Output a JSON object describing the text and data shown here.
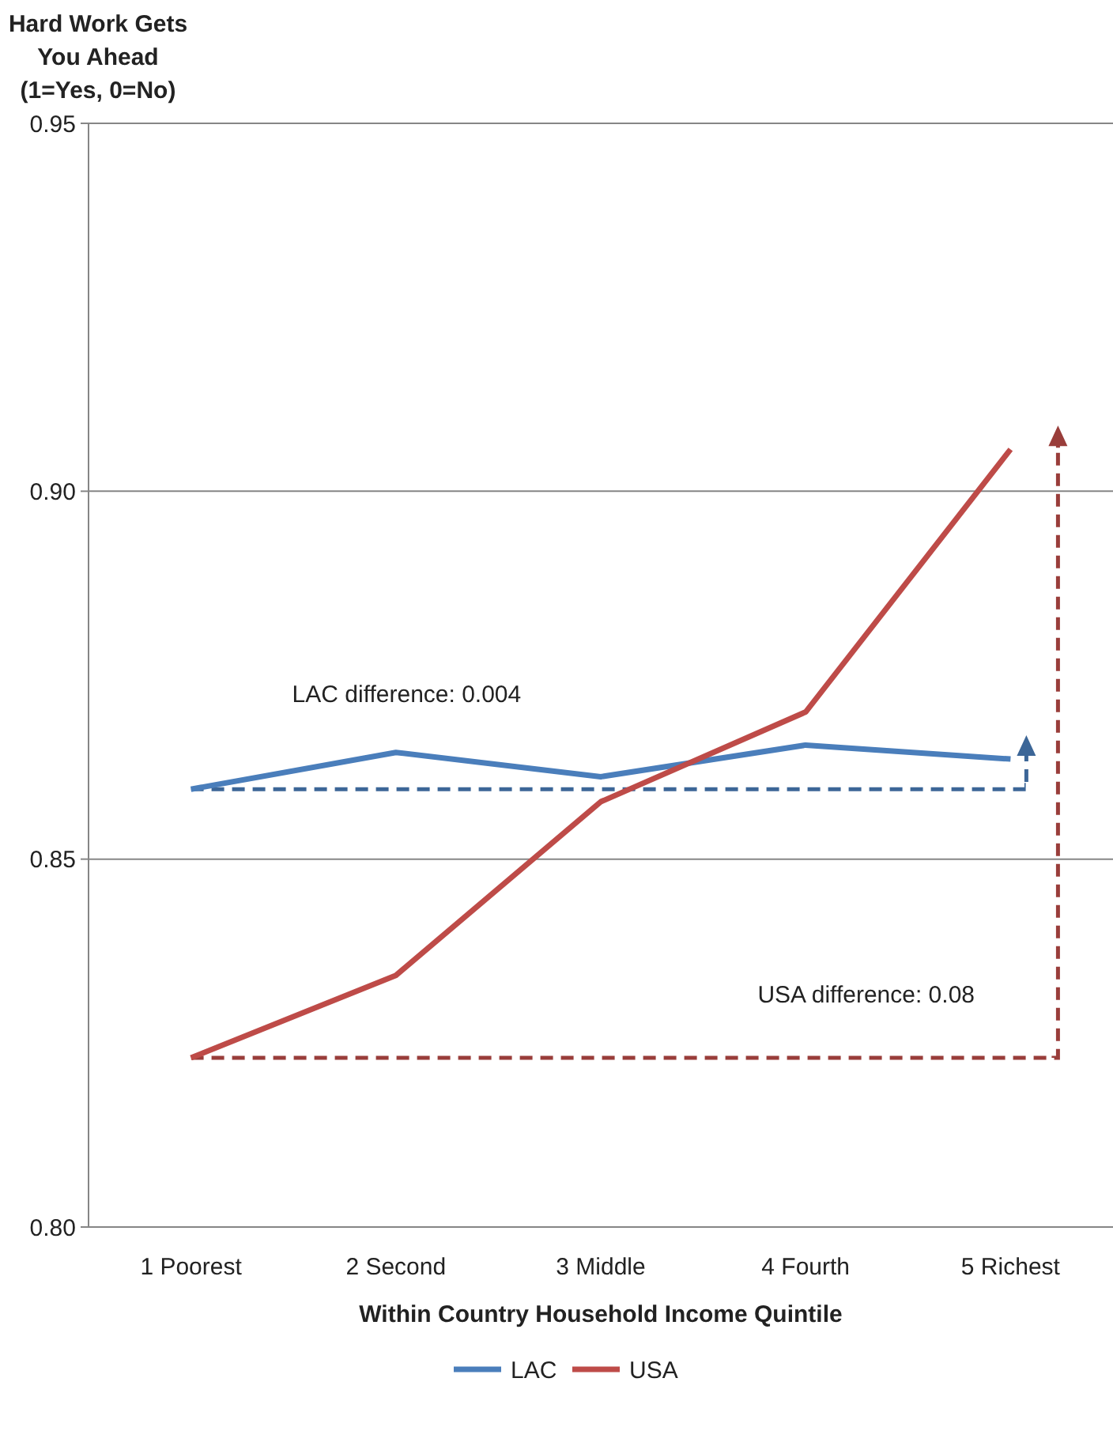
{
  "chart_data": {
    "type": "line",
    "ylabel": "Hard Work Gets You Ahead (1=Yes, 0=No)",
    "xlabel": "Within Country Household Income Quintile",
    "categories": [
      "1 Poorest",
      "2 Second",
      "3 Middle",
      "4 Fourth",
      "5 Richest"
    ],
    "ylim": [
      0.8,
      0.95
    ],
    "yticks": [
      {
        "value": 0.8,
        "label": "0.80"
      },
      {
        "value": 0.85,
        "label": "0.85"
      },
      {
        "value": 0.9,
        "label": "0.90"
      },
      {
        "value": 0.95,
        "label": "0.95"
      }
    ],
    "grid": "y",
    "legend": "bottom",
    "marker": "none",
    "line_style": "solid",
    "series": [
      {
        "name": "LAC",
        "color": "#4a7ebb",
        "values": [
          0.8595,
          0.8645,
          0.8612,
          0.8655,
          0.8636
        ]
      },
      {
        "name": "USA",
        "color": "#be4b48",
        "values": [
          0.823,
          0.8342,
          0.8578,
          0.87,
          0.9057
        ]
      }
    ],
    "annotations": [
      "LAC difference: 0.004",
      "USA difference: 0.08"
    ]
  }
}
